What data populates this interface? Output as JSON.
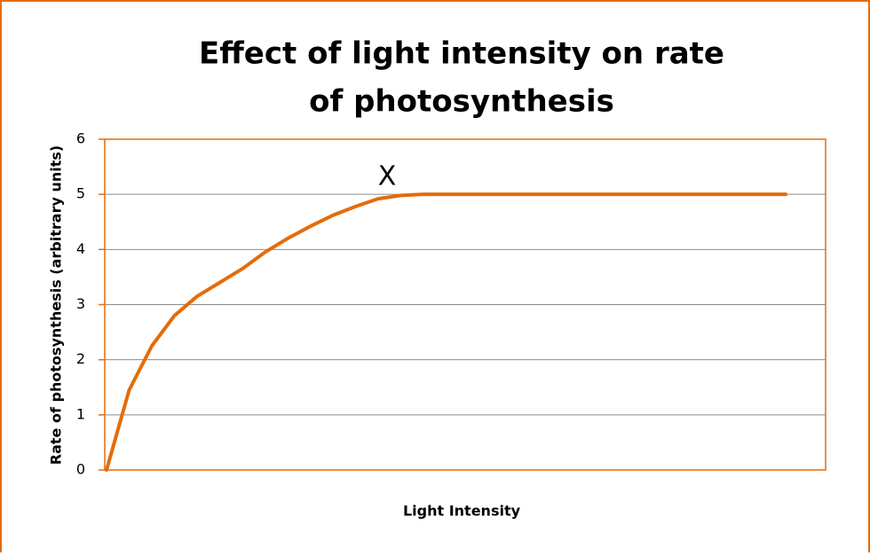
{
  "chart_data": {
    "type": "line",
    "title": [
      "Effect of light intensity on rate",
      "of photosynthesis"
    ],
    "x_label": "Light Intensity",
    "y_label": "Rate of photosynthesis (arbitrary units)",
    "annotation": "X",
    "categories": [
      null,
      null,
      null,
      null,
      null,
      null,
      null,
      null,
      null,
      null,
      null,
      null,
      null,
      null,
      null,
      null,
      null,
      null,
      null,
      null,
      null,
      null,
      null,
      null,
      null,
      null,
      null,
      null,
      null,
      null,
      null
    ],
    "series": [
      {
        "name": "Rate of photosynthesis",
        "color": "#e46c0a",
        "values": [
          0,
          1.45,
          2.25,
          2.8,
          3.15,
          3.4,
          3.65,
          3.95,
          4.2,
          4.42,
          4.62,
          4.78,
          4.92,
          4.98,
          5,
          5,
          5,
          5,
          5,
          5,
          5,
          5,
          5,
          5,
          5,
          5,
          5,
          5,
          5,
          5,
          5
        ]
      }
    ],
    "ylim": [
      0,
      6
    ],
    "yticks": [
      0,
      1,
      2,
      3,
      4,
      5,
      6
    ],
    "grid": true
  }
}
